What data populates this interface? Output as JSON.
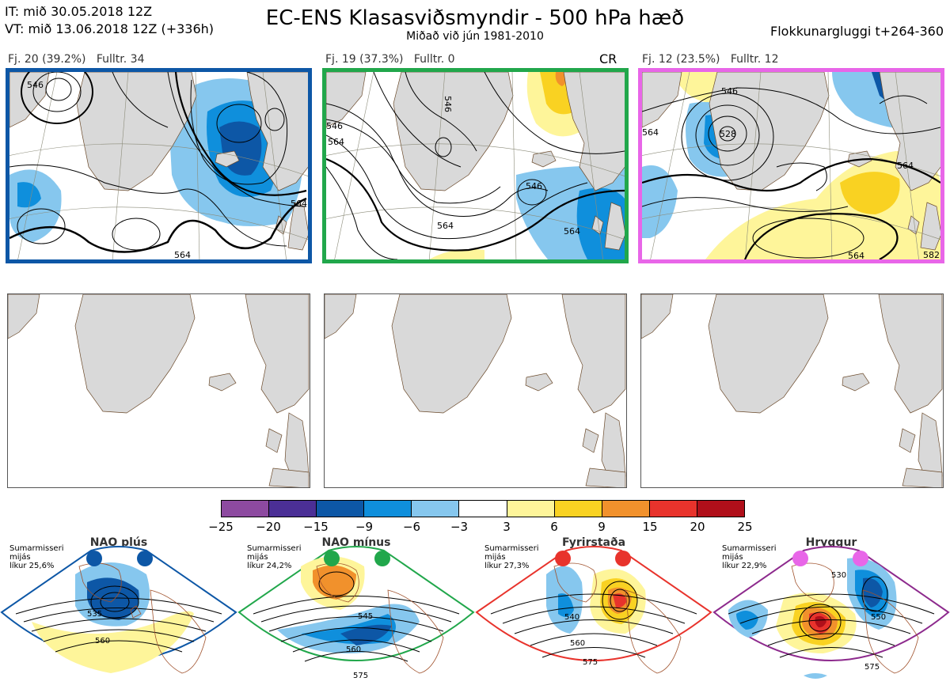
{
  "header": {
    "it_line": "IT: mið 30.05.2018 12Z",
    "vt_line": "VT: mið 13.06.2018 12Z  (+336h)",
    "title": "EC-ENS Klasasviðsmyndir - 500 hPa hæð",
    "subtitle": "Miðað við jún 1981-2010",
    "window": "Flokkunargluggi t+264-360"
  },
  "panels": [
    {
      "label": "Fj. 20 (39.2%)   Fulltr. 34",
      "badge": "",
      "border_color": "#0d57a6"
    },
    {
      "label": "Fj. 19 (37.3%)   Fulltr. 0",
      "badge": "CR",
      "border_color": "#21a74b"
    },
    {
      "label": "Fj. 12 (23.5%)   Fulltr. 12",
      "badge": "",
      "border_color": "#e866e8"
    }
  ],
  "contour_labels": {
    "panel1": [
      "546",
      "564",
      "564"
    ],
    "panel2": [
      "546",
      "546",
      "564",
      "546",
      "564",
      "564"
    ],
    "panel3": [
      "546",
      "528",
      "564",
      "564",
      "582",
      "564"
    ]
  },
  "colorbar": {
    "colors": [
      "#8d4aa0",
      "#4b2f96",
      "#0d57a6",
      "#0f8fdc",
      "#86c7ee",
      "#ffffff",
      "#fef59a",
      "#f9d222",
      "#f1912c",
      "#e8332c",
      "#b00f1a"
    ],
    "ticks": [
      "−25",
      "−20",
      "−15",
      "−9",
      "−6",
      "−3",
      "3",
      "6",
      "9",
      "15",
      "20",
      "25"
    ]
  },
  "regimes": [
    {
      "name": "NAO plús",
      "info": "Sumarmisseri\nmijás\nlíkur 25,6%",
      "color": "#0d57a6",
      "labels": [
        "535",
        "560"
      ]
    },
    {
      "name": "NAO mínus",
      "info": "Sumarmisseri\nmijás\nlíkur 24,2%",
      "color": "#21a74b",
      "labels": [
        "545",
        "560",
        "575"
      ]
    },
    {
      "name": "Fyrirstaða",
      "info": "Sumarmisseri\nmijás\nlíkur 27,3%",
      "color": "#e8332c",
      "labels": [
        "540",
        "560",
        "575"
      ]
    },
    {
      "name": "Hryggur",
      "info": "Sumarmisseri\nmijás\nlíkur 22,9%",
      "color": "#8d2a8d",
      "dot_color": "#e866e8",
      "labels": [
        "530",
        "550",
        "575"
      ]
    }
  ],
  "icons": [
    "greenland-landmass-icon",
    "scandinavia-landmass-icon",
    "regime-dot-icon"
  ]
}
